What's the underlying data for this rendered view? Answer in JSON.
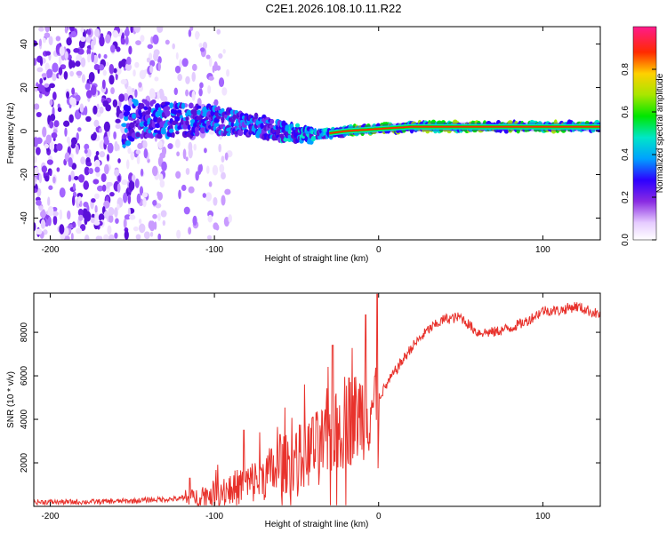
{
  "title": "C2E1.2026.108.10.11.R22",
  "colors": {
    "snr_line": "#e8322c",
    "axis": "#000000",
    "background": "#ffffff"
  },
  "chart_data": [
    {
      "type": "heatmap",
      "name": "spectrogram",
      "xlabel": "Height of straight line (km)",
      "ylabel": "Frequency (Hz)",
      "xlim": [
        -210,
        135
      ],
      "ylim": [
        -50,
        48
      ],
      "x_ticks": [
        -200,
        -100,
        0,
        100
      ],
      "x_tick_labels": [
        "-200",
        "-100",
        "0",
        "100"
      ],
      "y_ticks": [
        -40,
        -20,
        0,
        20,
        40
      ],
      "y_tick_labels": [
        "-40",
        "-20",
        "0",
        "20",
        "40"
      ],
      "ridge": {
        "description_points_x": [
          -150,
          -120,
          -100,
          -80,
          -60,
          -40,
          -20,
          0,
          20,
          50,
          90,
          100,
          135
        ],
        "description_points_freq": [
          6,
          5,
          5,
          3,
          0,
          -2,
          0,
          1,
          2,
          2,
          2,
          2,
          2
        ]
      },
      "colorbar": {
        "label": "Normalized spectral amplitude",
        "range": [
          0,
          1
        ],
        "ticks": [
          0,
          0.2,
          0.4,
          0.6,
          0.8
        ],
        "tick_labels": [
          "0.0",
          "0.2",
          "0.4",
          "0.6",
          "0.8"
        ]
      }
    },
    {
      "type": "line",
      "name": "snr",
      "xlabel": "Height of straight line (km)",
      "ylabel": "SNR (10 * v/v)",
      "xlim": [
        -210,
        135
      ],
      "ylim": [
        0,
        9800
      ],
      "x_ticks": [
        -200,
        -100,
        0,
        100
      ],
      "x_tick_labels": [
        "-200",
        "-100",
        "0",
        "100"
      ],
      "y_ticks": [
        2000,
        4000,
        6000,
        8000
      ],
      "y_tick_labels": [
        "2000",
        "4000",
        "6000",
        "8000"
      ],
      "series": [
        {
          "name": "SNR",
          "x": [
            -210,
            -180,
            -150,
            -140,
            -120,
            -110,
            -100,
            -90,
            -80,
            -70,
            -60,
            -50,
            -40,
            -30,
            -20,
            -10,
            0,
            10,
            20,
            30,
            40,
            50,
            60,
            70,
            80,
            90,
            100,
            110,
            120,
            135
          ],
          "y": [
            200,
            200,
            250,
            300,
            350,
            450,
            600,
            800,
            1000,
            1400,
            1800,
            2200,
            2600,
            3000,
            3800,
            4300,
            5000,
            6200,
            7300,
            8100,
            8600,
            8700,
            8000,
            8000,
            8200,
            8500,
            9000,
            9000,
            9200,
            8800
          ]
        }
      ],
      "spikes": [
        {
          "x": -115,
          "y": 1300
        },
        {
          "x": -82,
          "y": 3500
        },
        {
          "x": -60,
          "y": 3300
        },
        {
          "x": -40,
          "y": 4100
        },
        {
          "x": -28,
          "y": 7400
        },
        {
          "x": -18,
          "y": 5900
        },
        {
          "x": -8,
          "y": 8800
        },
        {
          "x": -1,
          "y": 9750
        }
      ]
    }
  ]
}
